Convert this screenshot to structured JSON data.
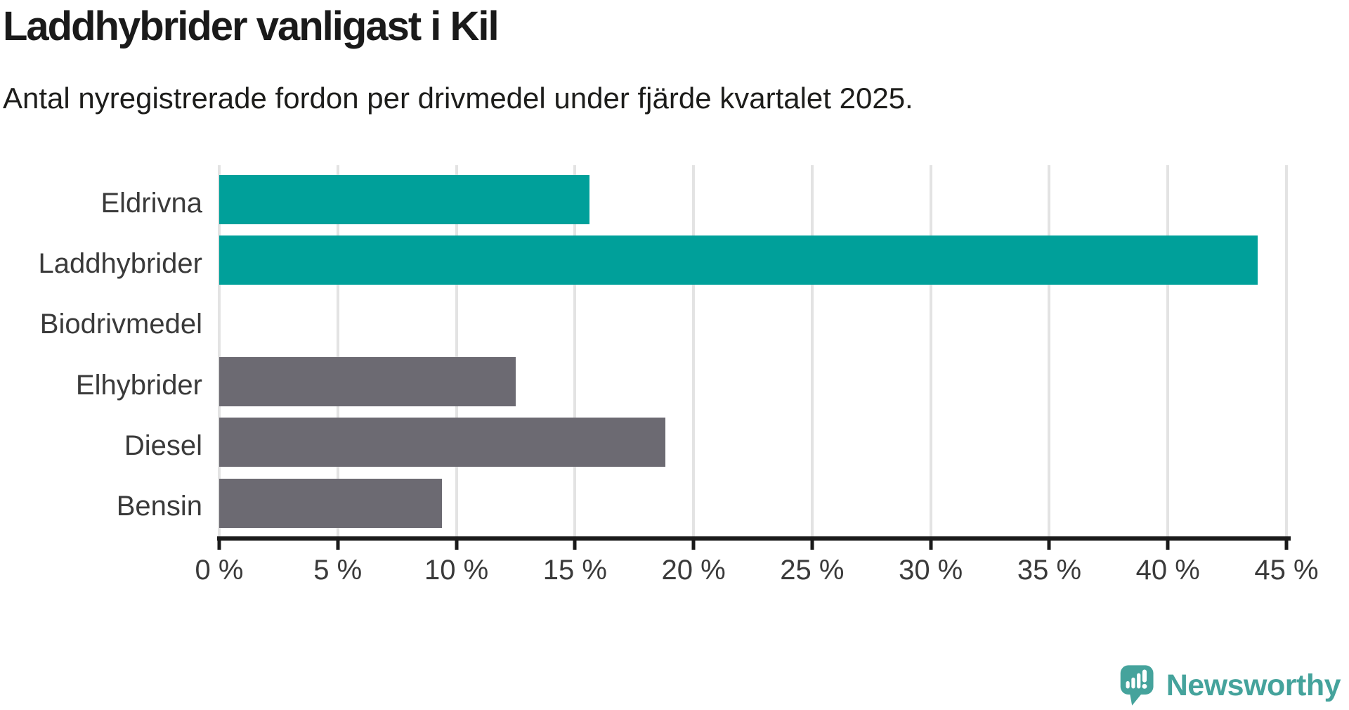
{
  "chart_data": {
    "type": "bar",
    "orientation": "horizontal",
    "title": "Laddhybrider vanligast i Kil",
    "subtitle": "Antal nyregistrerade fordon per drivmedel under fjärde kvartalet 2025.",
    "categories": [
      "Eldrivna",
      "Laddhybrider",
      "Biodrivmedel",
      "Elhybrider",
      "Diesel",
      "Bensin"
    ],
    "values": [
      15.6,
      43.8,
      0,
      12.5,
      18.8,
      9.4
    ],
    "unit": "%",
    "xlim": [
      0,
      45
    ],
    "tick_values": [
      0,
      5,
      10,
      15,
      20,
      25,
      30,
      35,
      40,
      45
    ],
    "x_ticks": [
      "0 %",
      "5 %",
      "10 %",
      "15 %",
      "20 %",
      "25 %",
      "30 %",
      "35 %",
      "40 %",
      "45 %"
    ],
    "bar_colors": [
      "#00a09a",
      "#00a09a",
      "#6c6a72",
      "#6c6a72",
      "#6c6a72",
      "#6c6a72"
    ],
    "grid": true,
    "legend": "none",
    "xlabel": "",
    "ylabel": ""
  },
  "colors": {
    "highlight": "#00a09a",
    "neutral": "#6c6a72",
    "gridline": "#e3e3e3",
    "axis": "#1a1a1a",
    "title_text": "#1a1a1a",
    "label_text": "#3a3a3a",
    "brand": "#45a39c",
    "background": "#ffffff"
  },
  "branding": {
    "logo_text": "Newsworthy",
    "logo_icon": "newsworthy-speech-bubble-chart-icon"
  }
}
